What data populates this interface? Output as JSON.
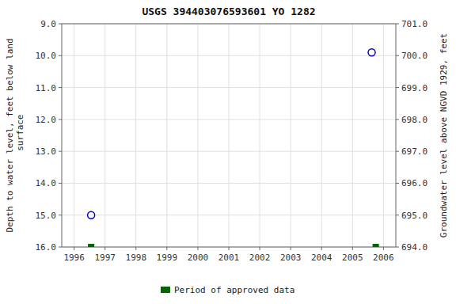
{
  "chart_data": {
    "type": "scatter",
    "title": "USGS 394403076593601 YO  1282",
    "y_label": "Depth to water level, feet below land\n surface",
    "y2_label": "Groundwater level above NGVD 1929, feet",
    "xlim": [
      1995.6,
      2006.4
    ],
    "xticks": [
      1996,
      1997,
      1998,
      1999,
      2000,
      2001,
      2002,
      2003,
      2004,
      2005,
      2006
    ],
    "ylim": [
      16.0,
      9.0
    ],
    "yticks": [
      {
        "value": 9.0,
        "label": "9.0"
      },
      {
        "value": 10.0,
        "label": "10.0"
      },
      {
        "value": 11.0,
        "label": "11.0"
      },
      {
        "value": 12.0,
        "label": "12.0"
      },
      {
        "value": 13.0,
        "label": "13.0"
      },
      {
        "value": 14.0,
        "label": "14.0"
      },
      {
        "value": 15.0,
        "label": "15.0"
      },
      {
        "value": 16.0,
        "label": "16.0"
      }
    ],
    "y2lim": [
      694.0,
      701.0
    ],
    "y2ticks": [
      {
        "value": 701.0,
        "label": "701.0"
      },
      {
        "value": 700.0,
        "label": "700.0"
      },
      {
        "value": 699.0,
        "label": "699.0"
      },
      {
        "value": 698.0,
        "label": "698.0"
      },
      {
        "value": 697.0,
        "label": "697.0"
      },
      {
        "value": 696.0,
        "label": "696.0"
      },
      {
        "value": 695.0,
        "label": "695.0"
      },
      {
        "value": 694.0,
        "label": "694.0"
      }
    ],
    "grid": true,
    "legend": "bottom",
    "series": [
      {
        "color": "#0000cc",
        "marker": "circle",
        "x": [
          1996.55,
          2005.62
        ],
        "values": [
          15.0,
          9.9
        ]
      },
      {
        "name": "Period of approved data",
        "color": "#006600",
        "marker": "square",
        "x": [
          1996.55,
          2005.75
        ],
        "values": [
          16.0,
          16.0
        ]
      }
    ]
  }
}
